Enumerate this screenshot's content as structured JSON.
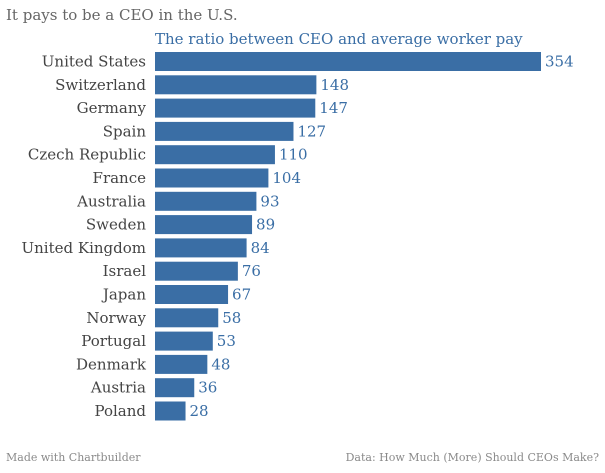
{
  "chart_data": {
    "type": "bar",
    "orientation": "horizontal",
    "title": "It pays to be a CEO in the U.S.",
    "subtitle": "The ratio between CEO and average worker pay",
    "categories": [
      "United States",
      "Switzerland",
      "Germany",
      "Spain",
      "Czech Republic",
      "France",
      "Australia",
      "Sweden",
      "United Kingdom",
      "Israel",
      "Japan",
      "Norway",
      "Portugal",
      "Denmark",
      "Austria",
      "Poland"
    ],
    "values": [
      354,
      148,
      147,
      127,
      110,
      104,
      93,
      89,
      84,
      76,
      67,
      58,
      53,
      48,
      36,
      28
    ],
    "xlim": [
      0,
      354
    ],
    "grid": false,
    "legend": "none",
    "bar_color": "#3a6ea5",
    "value_label_color": "#3a6ea5"
  },
  "footer": {
    "left": "Made with Chartbuilder",
    "right": "Data: How Much (More) Should CEOs Make?"
  }
}
